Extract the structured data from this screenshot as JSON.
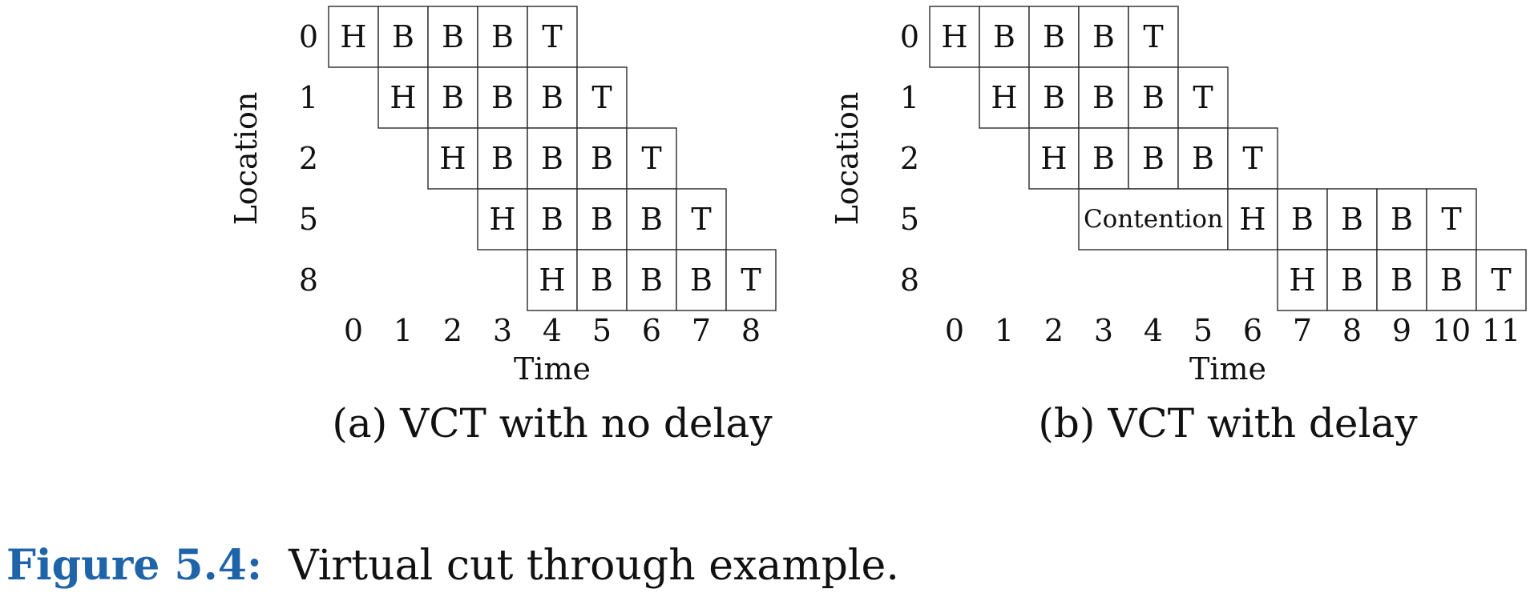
{
  "panels": [
    {
      "id": "a",
      "caption": "(a) VCT with no delay",
      "xlabel": "Time",
      "ylabel": "Location",
      "x_ticks": [
        "0",
        "1",
        "2",
        "3",
        "4",
        "5",
        "6",
        "7",
        "8"
      ],
      "rows": [
        {
          "location": "0",
          "start": 0,
          "cells": [
            "H",
            "B",
            "B",
            "B",
            "T"
          ]
        },
        {
          "location": "1",
          "start": 1,
          "cells": [
            "H",
            "B",
            "B",
            "B",
            "T"
          ]
        },
        {
          "location": "2",
          "start": 2,
          "cells": [
            "H",
            "B",
            "B",
            "B",
            "T"
          ]
        },
        {
          "location": "5",
          "start": 3,
          "cells": [
            "H",
            "B",
            "B",
            "B",
            "T"
          ]
        },
        {
          "location": "8",
          "start": 4,
          "cells": [
            "H",
            "B",
            "B",
            "B",
            "T"
          ]
        }
      ]
    },
    {
      "id": "b",
      "caption": "(b) VCT with delay",
      "xlabel": "Time",
      "ylabel": "Location",
      "x_ticks": [
        "0",
        "1",
        "2",
        "3",
        "4",
        "5",
        "6",
        "7",
        "8",
        "9",
        "10",
        "11"
      ],
      "rows": [
        {
          "location": "0",
          "start": 0,
          "cells": [
            "H",
            "B",
            "B",
            "B",
            "T"
          ]
        },
        {
          "location": "1",
          "start": 1,
          "cells": [
            "H",
            "B",
            "B",
            "B",
            "T"
          ]
        },
        {
          "location": "2",
          "start": 2,
          "cells": [
            "H",
            "B",
            "B",
            "B",
            "T"
          ]
        },
        {
          "location": "5",
          "start": 3,
          "contention": {
            "label": "Contention",
            "span": 3
          },
          "cells_start": 6,
          "cells": [
            "H",
            "B",
            "B",
            "B",
            "T"
          ]
        },
        {
          "location": "8",
          "start": 7,
          "cells": [
            "H",
            "B",
            "B",
            "B",
            "T"
          ]
        }
      ]
    }
  ],
  "figure_caption": {
    "number": "Figure 5.4:",
    "text": "Virtual cut through example."
  }
}
